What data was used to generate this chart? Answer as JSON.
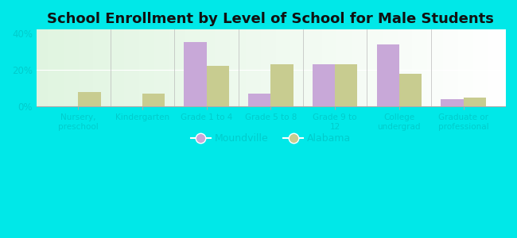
{
  "title": "School Enrollment by Level of School for Male Students",
  "categories": [
    "Nursery,\npreschool",
    "Kindergarten",
    "Grade 1 to 4",
    "Grade 5 to 8",
    "Grade 9 to\n12",
    "College\nundergrad",
    "Graduate or\nprofessional"
  ],
  "moundville": [
    0,
    0,
    35,
    7,
    23,
    34,
    4
  ],
  "alabama": [
    8,
    7,
    22,
    23,
    23,
    18,
    5
  ],
  "moundville_color": "#c8a8d8",
  "alabama_color": "#c8cc90",
  "title_fontsize": 13,
  "ylim": [
    0,
    42
  ],
  "yticks": [
    0,
    20,
    40
  ],
  "ytick_labels": [
    "0%",
    "20%",
    "40%"
  ],
  "bar_width": 0.35,
  "background_color": "#00e8e8",
  "tick_label_color": "#00cccc",
  "legend_moundville": "Moundville",
  "legend_alabama": "Alabama"
}
